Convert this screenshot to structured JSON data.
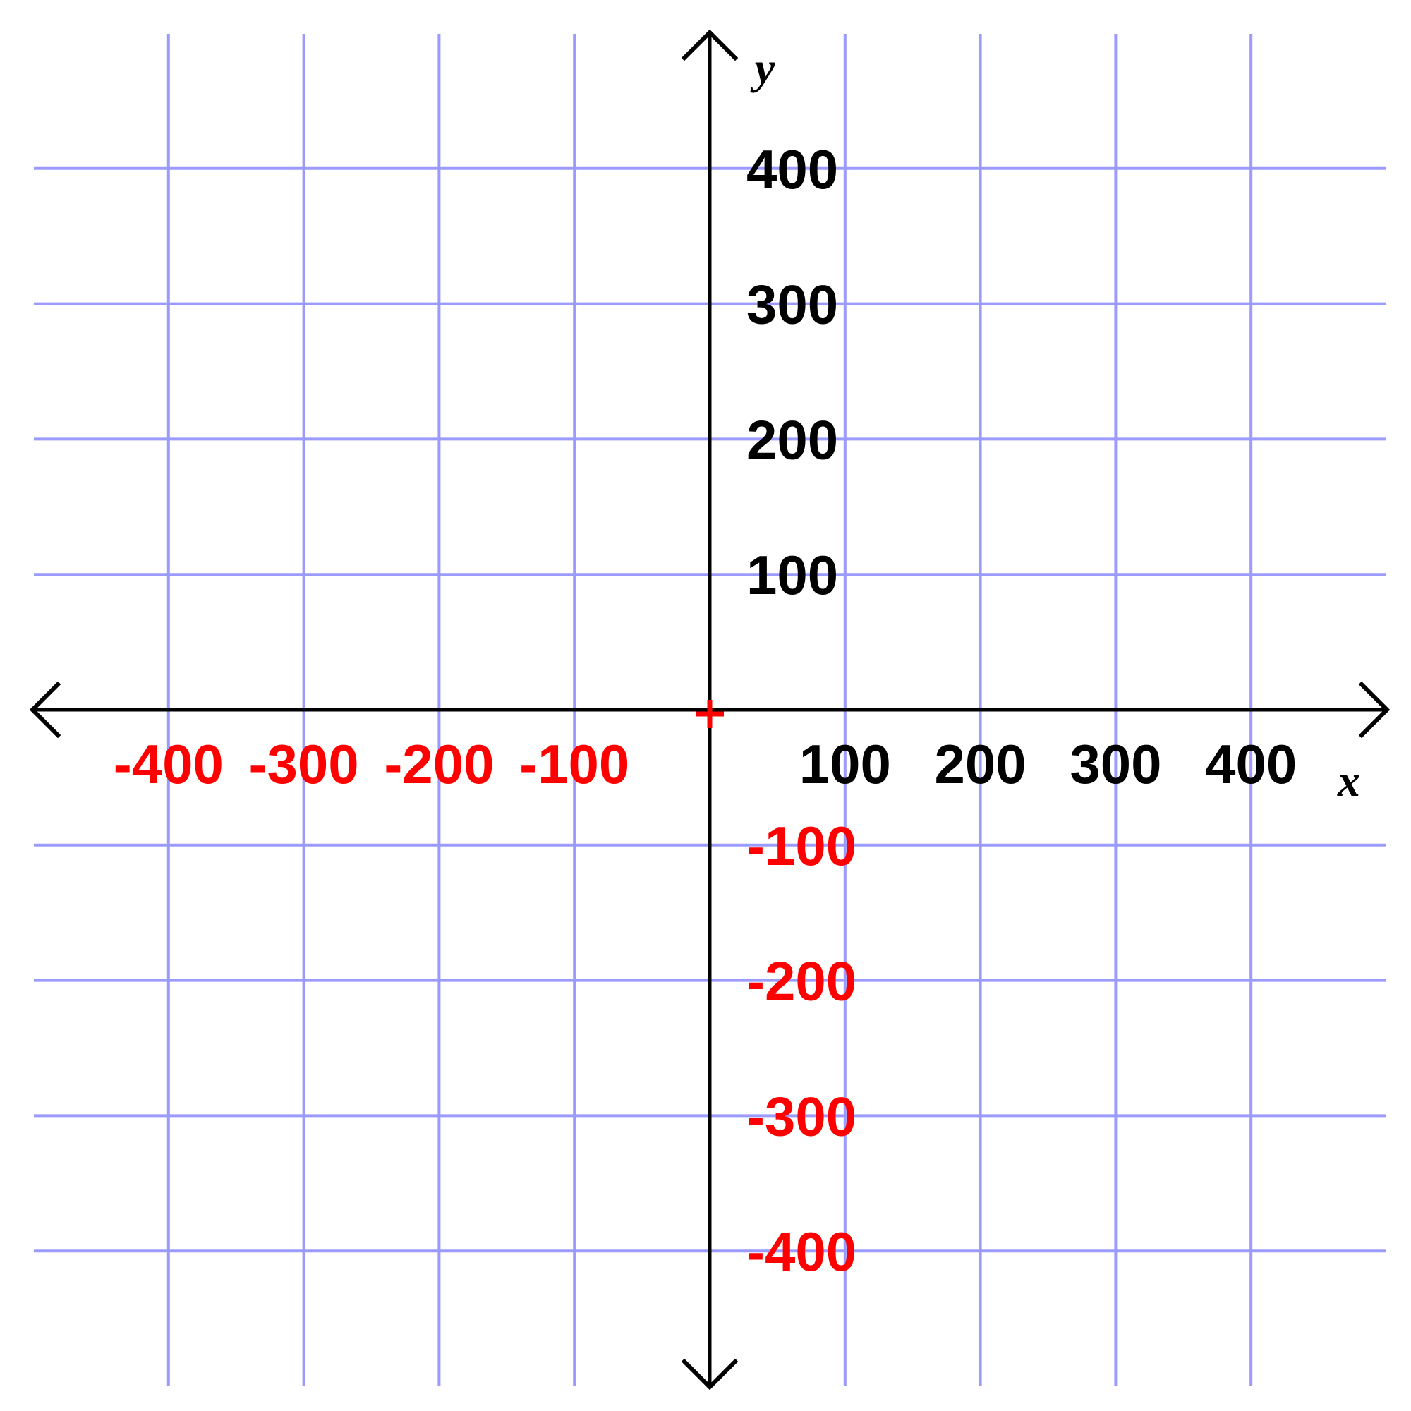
{
  "chart_data": {
    "type": "scatter",
    "title": "",
    "xlabel": "x",
    "ylabel": "y",
    "xlim": [
      -500,
      500
    ],
    "ylim": [
      -500,
      500
    ],
    "grid": true,
    "x_ticks": [
      -400,
      -300,
      -200,
      -100,
      100,
      200,
      300,
      400
    ],
    "y_ticks": [
      400,
      300,
      200,
      100,
      -100,
      -200,
      -300,
      -400
    ],
    "x_tick_labels": [
      "-400",
      "-300",
      "-200",
      "-100",
      "100",
      "200",
      "300",
      "400"
    ],
    "y_tick_labels": [
      "400",
      "300",
      "200",
      "100",
      "-100",
      "-200",
      "-300",
      "-400"
    ],
    "origin_marker": {
      "x": 0,
      "y": 0,
      "symbol": "plus"
    },
    "points": []
  },
  "colors": {
    "grid": "#9a9aff",
    "axis": "#000000",
    "positive_label": "#000000",
    "negative_label": "#ff0000",
    "origin_marker": "#ff0000"
  }
}
